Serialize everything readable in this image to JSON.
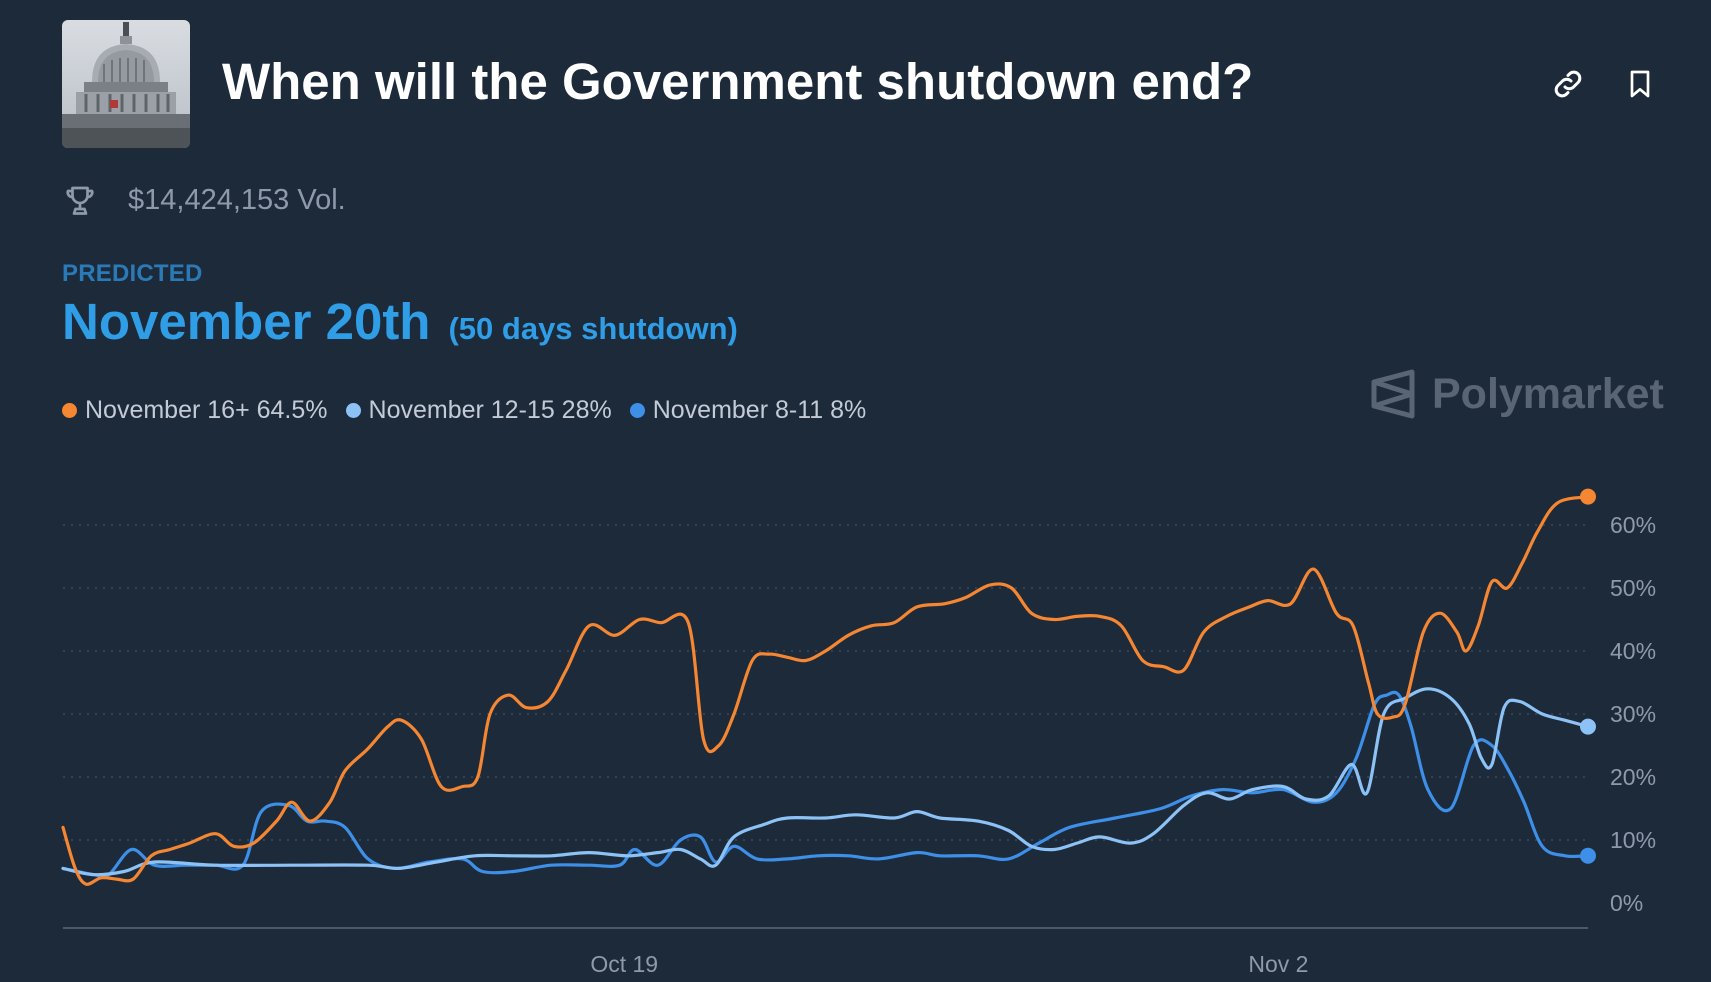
{
  "header": {
    "title": "When will the Government shutdown end?",
    "thumbnail_icon": "capitol-building-image",
    "link_icon": "link-icon",
    "bookmark_icon": "bookmark-icon"
  },
  "stats": {
    "volume": "$14,424,153 Vol.",
    "volume_icon": "trophy-icon"
  },
  "predicted": {
    "label": "PREDICTED",
    "value": "November 20th",
    "subtext": "(50 days shutdown)"
  },
  "watermark": {
    "text": "Polymarket",
    "icon": "polymarket-logo-icon"
  },
  "colors": {
    "background": "#1d2a3a",
    "accent": "#2f9ee6",
    "series_orange": "#f58632",
    "series_light_blue": "#8cc2f5",
    "series_blue": "#3d8fe8"
  },
  "legend": [
    {
      "text": "November 16+ 64.5%",
      "color": "#f58632"
    },
    {
      "text": "November 12-15 28%",
      "color": "#8cc2f5"
    },
    {
      "text": "November 8-11 8%",
      "color": "#3d8fe8"
    }
  ],
  "chart_data": {
    "type": "line",
    "x_tick_labels": [
      {
        "label": "Oct 19",
        "t": 0.368
      },
      {
        "label": "Nov 2",
        "t": 0.797
      }
    ],
    "y_tick_labels": [
      "0%",
      "10%",
      "20%",
      "30%",
      "40%",
      "50%",
      "60%"
    ],
    "y_ticks": [
      0,
      10,
      20,
      30,
      40,
      50,
      60
    ],
    "ylim": [
      0,
      70
    ],
    "xlim": [
      0,
      1
    ],
    "grid": "horizontal-dotted",
    "y_axis_position": "right",
    "series": [
      {
        "name": "November 16+",
        "color": "#f58632",
        "end_marker": true,
        "points": [
          [
            0.0,
            12.0
          ],
          [
            0.008,
            5.5
          ],
          [
            0.015,
            3.0
          ],
          [
            0.025,
            4.0
          ],
          [
            0.035,
            3.8
          ],
          [
            0.046,
            3.8
          ],
          [
            0.058,
            7.5
          ],
          [
            0.07,
            8.5
          ],
          [
            0.083,
            9.5
          ],
          [
            0.1,
            11.0
          ],
          [
            0.112,
            9.0
          ],
          [
            0.125,
            9.5
          ],
          [
            0.14,
            13.0
          ],
          [
            0.15,
            16.0
          ],
          [
            0.162,
            13.0
          ],
          [
            0.175,
            16.0
          ],
          [
            0.185,
            21.0
          ],
          [
            0.2,
            24.5
          ],
          [
            0.213,
            28.0
          ],
          [
            0.222,
            29.0
          ],
          [
            0.235,
            26.0
          ],
          [
            0.248,
            18.5
          ],
          [
            0.262,
            18.5
          ],
          [
            0.272,
            20.0
          ],
          [
            0.28,
            30.0
          ],
          [
            0.292,
            33.0
          ],
          [
            0.304,
            31.0
          ],
          [
            0.318,
            32.0
          ],
          [
            0.33,
            37.0
          ],
          [
            0.345,
            44.0
          ],
          [
            0.362,
            42.5
          ],
          [
            0.378,
            45.0
          ],
          [
            0.392,
            44.5
          ],
          [
            0.41,
            44.5
          ],
          [
            0.42,
            26.0
          ],
          [
            0.43,
            25.0
          ],
          [
            0.44,
            30.0
          ],
          [
            0.452,
            38.5
          ],
          [
            0.463,
            39.5
          ],
          [
            0.475,
            39.0
          ],
          [
            0.487,
            38.5
          ],
          [
            0.5,
            40.0
          ],
          [
            0.515,
            42.5
          ],
          [
            0.53,
            44.0
          ],
          [
            0.545,
            44.5
          ],
          [
            0.56,
            47.0
          ],
          [
            0.578,
            47.5
          ],
          [
            0.592,
            48.5
          ],
          [
            0.608,
            50.5
          ],
          [
            0.622,
            50.0
          ],
          [
            0.635,
            46.0
          ],
          [
            0.65,
            45.0
          ],
          [
            0.665,
            45.5
          ],
          [
            0.68,
            45.5
          ],
          [
            0.694,
            44.0
          ],
          [
            0.708,
            38.5
          ],
          [
            0.722,
            37.5
          ],
          [
            0.735,
            37.0
          ],
          [
            0.748,
            43.0
          ],
          [
            0.763,
            45.5
          ],
          [
            0.778,
            47.0
          ],
          [
            0.79,
            48.0
          ],
          [
            0.805,
            47.5
          ],
          [
            0.82,
            53.0
          ],
          [
            0.835,
            46.0
          ],
          [
            0.846,
            44.0
          ],
          [
            0.856,
            35.0
          ],
          [
            0.862,
            30.0
          ],
          [
            0.872,
            29.5
          ],
          [
            0.88,
            31.5
          ],
          [
            0.892,
            43.0
          ],
          [
            0.903,
            46.0
          ],
          [
            0.914,
            43.0
          ],
          [
            0.92,
            40.0
          ],
          [
            0.928,
            44.0
          ],
          [
            0.937,
            51.0
          ],
          [
            0.947,
            50.0
          ],
          [
            0.957,
            54.0
          ],
          [
            0.967,
            59.0
          ],
          [
            0.98,
            63.5
          ],
          [
            1.0,
            64.5
          ]
        ]
      },
      {
        "name": "November 12-15",
        "color": "#8cc2f5",
        "end_marker": true,
        "points": [
          [
            0.0,
            5.5
          ],
          [
            0.02,
            4.5
          ],
          [
            0.04,
            5.0
          ],
          [
            0.06,
            6.5
          ],
          [
            0.1,
            6.0
          ],
          [
            0.15,
            6.0
          ],
          [
            0.2,
            6.0
          ],
          [
            0.22,
            5.5
          ],
          [
            0.245,
            6.5
          ],
          [
            0.27,
            7.5
          ],
          [
            0.295,
            7.5
          ],
          [
            0.32,
            7.5
          ],
          [
            0.345,
            8.0
          ],
          [
            0.37,
            7.5
          ],
          [
            0.39,
            8.0
          ],
          [
            0.405,
            8.5
          ],
          [
            0.418,
            7.0
          ],
          [
            0.428,
            6.0
          ],
          [
            0.44,
            10.5
          ],
          [
            0.46,
            12.5
          ],
          [
            0.475,
            13.5
          ],
          [
            0.5,
            13.5
          ],
          [
            0.52,
            14.0
          ],
          [
            0.545,
            13.5
          ],
          [
            0.56,
            14.5
          ],
          [
            0.575,
            13.5
          ],
          [
            0.6,
            13.0
          ],
          [
            0.62,
            11.5
          ],
          [
            0.635,
            9.0
          ],
          [
            0.65,
            8.5
          ],
          [
            0.665,
            9.5
          ],
          [
            0.68,
            10.5
          ],
          [
            0.7,
            9.5
          ],
          [
            0.715,
            11.0
          ],
          [
            0.735,
            15.5
          ],
          [
            0.75,
            17.5
          ],
          [
            0.765,
            16.5
          ],
          [
            0.78,
            18.0
          ],
          [
            0.8,
            18.5
          ],
          [
            0.815,
            16.5
          ],
          [
            0.83,
            17.0
          ],
          [
            0.845,
            22.0
          ],
          [
            0.855,
            17.5
          ],
          [
            0.866,
            30.0
          ],
          [
            0.88,
            32.5
          ],
          [
            0.895,
            34.0
          ],
          [
            0.91,
            32.5
          ],
          [
            0.922,
            28.5
          ],
          [
            0.93,
            23.0
          ],
          [
            0.937,
            22.0
          ],
          [
            0.945,
            31.0
          ],
          [
            0.955,
            32.0
          ],
          [
            0.97,
            30.0
          ],
          [
            0.985,
            29.0
          ],
          [
            1.0,
            28.0
          ]
        ]
      },
      {
        "name": "November 8-11",
        "color": "#3d8fe8",
        "end_marker": true,
        "points": [
          [
            0.0,
            5.5
          ],
          [
            0.02,
            4.5
          ],
          [
            0.03,
            4.5
          ],
          [
            0.045,
            8.5
          ],
          [
            0.06,
            6.0
          ],
          [
            0.08,
            6.0
          ],
          [
            0.1,
            6.0
          ],
          [
            0.118,
            6.0
          ],
          [
            0.13,
            14.5
          ],
          [
            0.148,
            15.5
          ],
          [
            0.16,
            13.0
          ],
          [
            0.172,
            13.0
          ],
          [
            0.185,
            12.0
          ],
          [
            0.2,
            7.0
          ],
          [
            0.218,
            5.5
          ],
          [
            0.24,
            6.5
          ],
          [
            0.262,
            7.0
          ],
          [
            0.275,
            5.0
          ],
          [
            0.295,
            5.0
          ],
          [
            0.32,
            6.0
          ],
          [
            0.345,
            6.0
          ],
          [
            0.365,
            6.0
          ],
          [
            0.375,
            8.5
          ],
          [
            0.39,
            6.0
          ],
          [
            0.405,
            10.0
          ],
          [
            0.418,
            10.5
          ],
          [
            0.428,
            6.5
          ],
          [
            0.44,
            9.0
          ],
          [
            0.455,
            7.0
          ],
          [
            0.475,
            7.0
          ],
          [
            0.495,
            7.5
          ],
          [
            0.515,
            7.5
          ],
          [
            0.535,
            7.0
          ],
          [
            0.56,
            8.0
          ],
          [
            0.575,
            7.5
          ],
          [
            0.6,
            7.5
          ],
          [
            0.62,
            7.0
          ],
          [
            0.64,
            9.5
          ],
          [
            0.66,
            12.0
          ],
          [
            0.69,
            13.5
          ],
          [
            0.72,
            15.0
          ],
          [
            0.74,
            17.0
          ],
          [
            0.76,
            18.0
          ],
          [
            0.78,
            17.5
          ],
          [
            0.8,
            18.0
          ],
          [
            0.82,
            16.0
          ],
          [
            0.835,
            17.5
          ],
          [
            0.848,
            23.0
          ],
          [
            0.86,
            31.5
          ],
          [
            0.868,
            33.0
          ],
          [
            0.876,
            33.0
          ],
          [
            0.884,
            28.0
          ],
          [
            0.895,
            18.0
          ],
          [
            0.91,
            15.0
          ],
          [
            0.925,
            25.0
          ],
          [
            0.937,
            25.0
          ],
          [
            0.948,
            21.0
          ],
          [
            0.958,
            16.0
          ],
          [
            0.97,
            9.0
          ],
          [
            0.985,
            7.5
          ],
          [
            1.0,
            7.5
          ]
        ]
      }
    ]
  }
}
